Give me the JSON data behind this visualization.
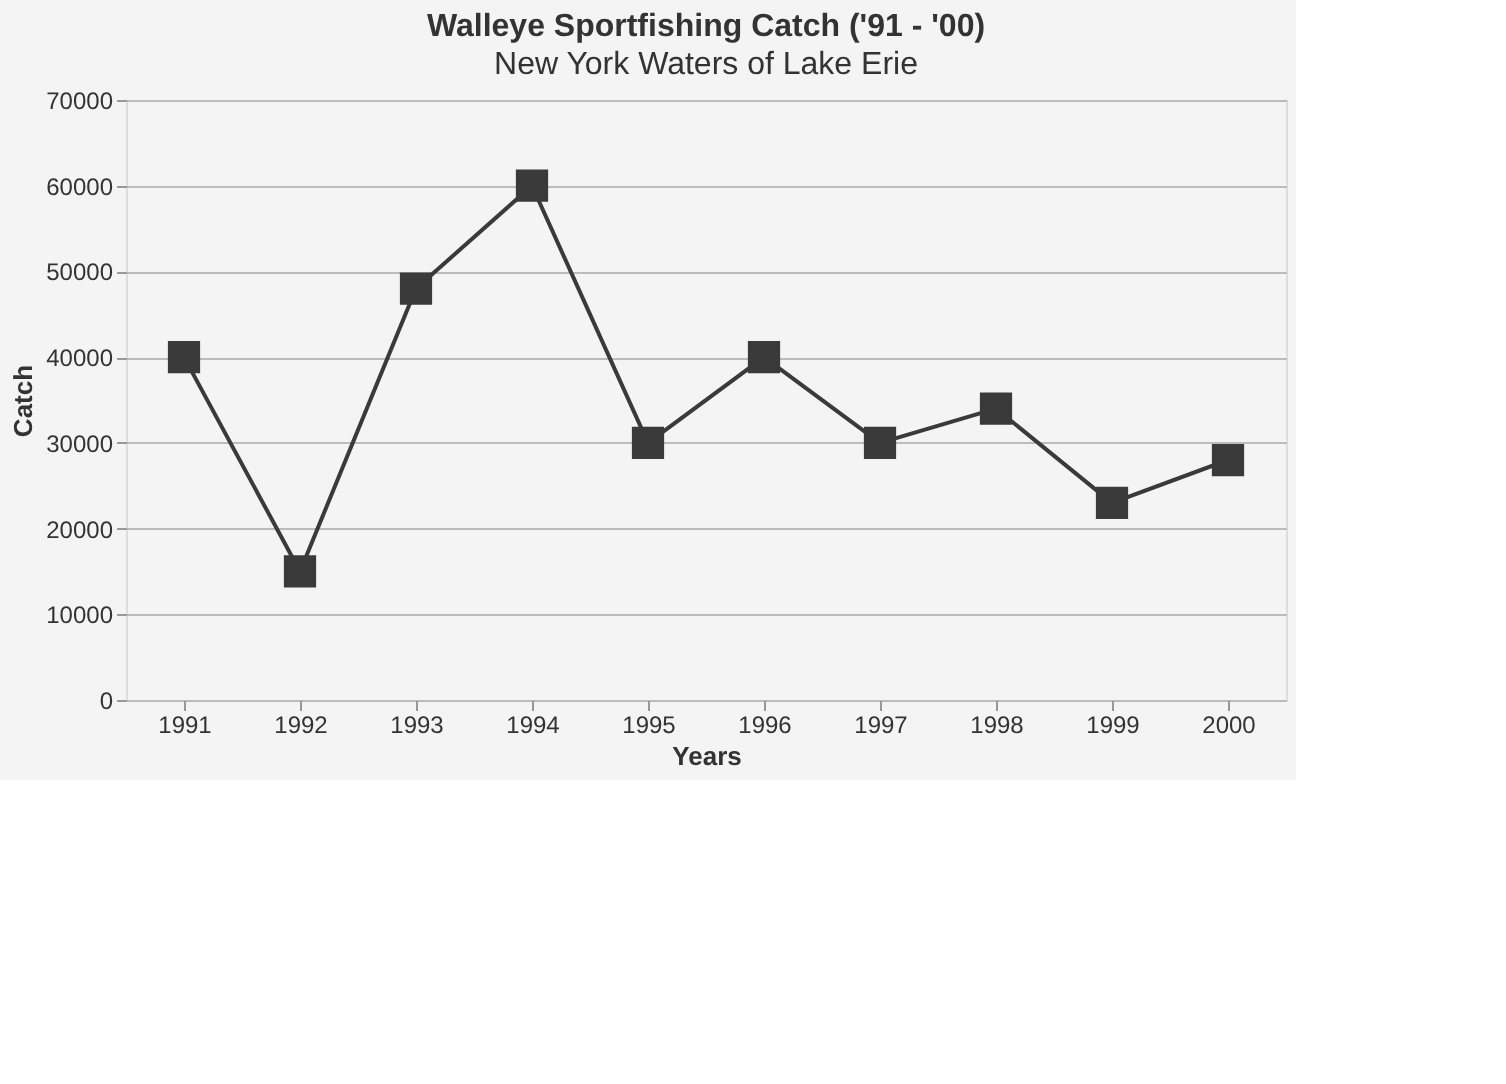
{
  "chart_data": {
    "type": "line",
    "title": "Walleye Sportfishing Catch ('91 - '00)",
    "subtitle": "New York Waters of Lake Erie",
    "xlabel": "Years",
    "ylabel": "Catch",
    "categories": [
      "1991",
      "1992",
      "1993",
      "1994",
      "1995",
      "1996",
      "1997",
      "1998",
      "1999",
      "2000"
    ],
    "series": [
      {
        "color": "#3a3a3a",
        "values": [
          40000,
          15000,
          48000,
          60000,
          30000,
          40000,
          30000,
          34000,
          23000,
          28000
        ]
      }
    ],
    "ylim": [
      0,
      70000
    ],
    "yticks": [
      0,
      10000,
      20000,
      30000,
      40000,
      50000,
      60000,
      70000
    ],
    "grid": "y",
    "marker": "square",
    "line_style": "solid"
  }
}
